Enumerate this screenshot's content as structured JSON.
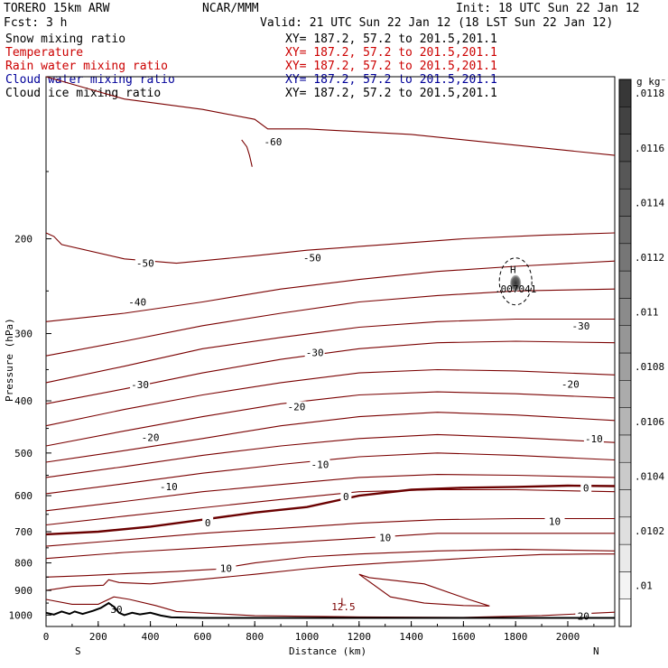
{
  "header": {
    "model": "TORERO  15km ARW",
    "center": "NCAR/MMM",
    "init": "Init: 18 UTC Sun 22 Jan 12",
    "fcst": "Fcst:     3 h",
    "valid": "Valid: 21 UTC Sun 22 Jan 12 (18 LST Sun 22 Jan 12)"
  },
  "fields": [
    {
      "label": "Snow mixing ratio",
      "xy": "XY= 187.2, 57.2 to 201.5,201.1",
      "color": "#000000"
    },
    {
      "label": "Temperature",
      "xy": "XY= 187.2, 57.2 to 201.5,201.1",
      "color": "#cc0000"
    },
    {
      "label": "Rain water mixing ratio",
      "xy": "XY= 187.2, 57.2 to 201.5,201.1",
      "color": "#cc0000"
    },
    {
      "label": "Cloud water mixing ratio",
      "xy": "XY= 187.2, 57.2 to 201.5,201.1",
      "color": "#000099"
    },
    {
      "label": "Cloud ice mixing ratio",
      "xy": "XY= 187.2, 57.2 to 201.5,201.1",
      "color": "#000000"
    }
  ],
  "colors": {
    "temp": "#7a0000",
    "zero": "#6a0000",
    "axis": "#000000"
  },
  "chart_data": {
    "type": "line",
    "xlabel": "Distance (km)",
    "ylabel": "Pressure (hPa)",
    "xlim": [
      0,
      2180
    ],
    "ylim": [
      1050,
      100
    ],
    "xticks": [
      0,
      200,
      400,
      600,
      800,
      1000,
      1200,
      1400,
      1600,
      1800,
      2000
    ],
    "yticks": [
      200,
      300,
      400,
      500,
      600,
      700,
      800,
      900,
      1000
    ],
    "y_scale": "log",
    "left_end": "S",
    "right_end": "N",
    "colorbar": {
      "unit": "g kg⁻¹",
      "ticks": [
        ".01",
        ".0102",
        ".0104",
        ".0106",
        ".0108",
        ".011",
        ".0112",
        ".0114",
        ".0116",
        ".0118"
      ]
    },
    "annotations": [
      {
        "text": "H",
        "x": 1790,
        "p": 228
      },
      {
        "text": ".007041",
        "x": 1800,
        "p": 248
      },
      {
        "text": "L",
        "x": 1140,
        "p": 945
      },
      {
        "text": "12.5",
        "x": 1140,
        "p": 965
      }
    ],
    "isotherms": [
      {
        "label": "-60",
        "label_at": [
          870,
          132
        ],
        "points": [
          [
            0,
            100
          ],
          [
            300,
            110
          ],
          [
            600,
            115
          ],
          [
            800,
            120
          ],
          [
            850,
            125
          ],
          [
            1000,
            125
          ],
          [
            1400,
            128
          ],
          [
            1800,
            134
          ],
          [
            2180,
            140
          ]
        ],
        "wiggle": [
          [
            750,
            131
          ],
          [
            770,
            135
          ],
          [
            780,
            140
          ],
          [
            790,
            147
          ]
        ]
      },
      {
        "label": "-50",
        "label_at": [
          380,
          222
        ],
        "points": [
          [
            0,
            195
          ],
          [
            30,
            198
          ],
          [
            60,
            205
          ],
          [
            300,
            218
          ],
          [
            500,
            222
          ],
          [
            800,
            215
          ],
          [
            1000,
            210
          ],
          [
            1300,
            205
          ],
          [
            1600,
            200
          ],
          [
            1900,
            197
          ],
          [
            2180,
            195
          ]
        ]
      },
      {
        "label": "-50",
        "label_at": [
          1020,
          217
        ],
        "points": [
          [
            0,
            285
          ],
          [
            300,
            275
          ],
          [
            600,
            262
          ],
          [
            900,
            248
          ],
          [
            1200,
            238
          ],
          [
            1500,
            230
          ],
          [
            1800,
            225
          ],
          [
            2180,
            220
          ]
        ]
      },
      {
        "label": "-40",
        "label_at": [
          350,
          262
        ],
        "points": [
          [
            0,
            330
          ],
          [
            300,
            310
          ],
          [
            600,
            290
          ],
          [
            900,
            275
          ],
          [
            1200,
            262
          ],
          [
            1500,
            255
          ],
          [
            1800,
            250
          ],
          [
            2180,
            248
          ]
        ]
      },
      {
        "label": "-30",
        "label_at": [
          2050,
          290
        ],
        "points": [
          [
            0,
            370
          ],
          [
            300,
            345
          ],
          [
            600,
            320
          ],
          [
            900,
            305
          ],
          [
            1200,
            292
          ],
          [
            1500,
            285
          ],
          [
            1800,
            282
          ],
          [
            2180,
            282
          ]
        ]
      },
      {
        "label": "-30",
        "label_at": [
          1030,
          325
        ],
        "points": [
          [
            0,
            405
          ],
          [
            300,
            380
          ],
          [
            600,
            355
          ],
          [
            900,
            335
          ],
          [
            1200,
            320
          ],
          [
            1500,
            312
          ],
          [
            1800,
            310
          ],
          [
            2180,
            312
          ]
        ]
      },
      {
        "label": "-30",
        "label_at": [
          360,
          373
        ],
        "points": [
          [
            0,
            445
          ],
          [
            300,
            415
          ],
          [
            600,
            390
          ],
          [
            900,
            370
          ],
          [
            1200,
            355
          ],
          [
            1500,
            350
          ],
          [
            1800,
            352
          ],
          [
            2180,
            358
          ]
        ]
      },
      {
        "label": "-20",
        "label_at": [
          2010,
          372
        ],
        "points": [
          [
            0,
            485
          ],
          [
            300,
            455
          ],
          [
            600,
            428
          ],
          [
            900,
            405
          ],
          [
            1200,
            390
          ],
          [
            1500,
            385
          ],
          [
            1800,
            388
          ],
          [
            2180,
            395
          ]
        ]
      },
      {
        "label": "-20",
        "label_at": [
          960,
          410
        ],
        "points": [
          [
            0,
            520
          ],
          [
            300,
            495
          ],
          [
            600,
            470
          ],
          [
            900,
            445
          ],
          [
            1200,
            428
          ],
          [
            1500,
            420
          ],
          [
            1800,
            425
          ],
          [
            2180,
            435
          ]
        ]
      },
      {
        "label": "-20",
        "label_at": [
          400,
          468
        ],
        "points": [
          [
            0,
            555
          ],
          [
            300,
            530
          ],
          [
            600,
            505
          ],
          [
            900,
            485
          ],
          [
            1200,
            470
          ],
          [
            1500,
            462
          ],
          [
            1800,
            468
          ],
          [
            2180,
            478
          ]
        ]
      },
      {
        "label": "-10",
        "label_at": [
          2100,
          470
        ],
        "points": [
          [
            0,
            595
          ],
          [
            300,
            570
          ],
          [
            600,
            545
          ],
          [
            900,
            525
          ],
          [
            1200,
            508
          ],
          [
            1500,
            500
          ],
          [
            1800,
            505
          ],
          [
            2180,
            515
          ]
        ]
      },
      {
        "label": "-10",
        "label_at": [
          1050,
          525
        ],
        "points": [
          [
            0,
            640
          ],
          [
            300,
            615
          ],
          [
            600,
            590
          ],
          [
            900,
            572
          ],
          [
            1200,
            555
          ],
          [
            1500,
            548
          ],
          [
            1800,
            550
          ],
          [
            2180,
            555
          ]
        ]
      },
      {
        "label": "-10",
        "label_at": [
          470,
          577
        ],
        "points": [
          [
            0,
            680
          ],
          [
            300,
            655
          ],
          [
            600,
            632
          ],
          [
            900,
            610
          ],
          [
            1200,
            590
          ],
          [
            1500,
            585
          ],
          [
            1800,
            585
          ],
          [
            2180,
            590
          ]
        ]
      },
      {
        "label": "10",
        "label_at": [
          1950,
          670
        ],
        "points": [
          [
            0,
            745
          ],
          [
            300,
            725
          ],
          [
            600,
            705
          ],
          [
            900,
            690
          ],
          [
            1200,
            675
          ],
          [
            1500,
            665
          ],
          [
            1800,
            662
          ],
          [
            2180,
            662
          ]
        ]
      },
      {
        "label": "10",
        "label_at": [
          1300,
          718
        ],
        "points": [
          [
            0,
            785
          ],
          [
            300,
            765
          ],
          [
            600,
            750
          ],
          [
            900,
            735
          ],
          [
            1200,
            720
          ],
          [
            1500,
            705
          ],
          [
            1800,
            705
          ],
          [
            2180,
            705
          ]
        ]
      },
      {
        "label": "10",
        "label_at": [
          690,
          818
        ],
        "points": [
          [
            0,
            850
          ],
          [
            150,
            845
          ],
          [
            300,
            838
          ],
          [
            500,
            830
          ],
          [
            650,
            822
          ],
          [
            800,
            800
          ],
          [
            1000,
            780
          ],
          [
            1200,
            770
          ],
          [
            1500,
            760
          ],
          [
            1800,
            755
          ],
          [
            2180,
            760
          ]
        ]
      }
    ],
    "zero_isotherm": {
      "label": "0",
      "label_at": [
        620,
        673
      ],
      "label2": "0",
      "label2_at": [
        1150,
        602
      ],
      "label3": "0",
      "label3_at": [
        2070,
        580
      ],
      "points": [
        [
          0,
          708
        ],
        [
          200,
          700
        ],
        [
          400,
          685
        ],
        [
          600,
          665
        ],
        [
          800,
          645
        ],
        [
          1000,
          630
        ],
        [
          1200,
          600
        ],
        [
          1400,
          585
        ],
        [
          1600,
          580
        ],
        [
          1800,
          578
        ],
        [
          2000,
          575
        ],
        [
          2180,
          576
        ]
      ]
    },
    "tongue": {
      "points": [
        [
          0,
          900
        ],
        [
          100,
          885
        ],
        [
          220,
          880
        ],
        [
          240,
          860
        ],
        [
          280,
          870
        ],
        [
          400,
          875
        ],
        [
          600,
          858
        ],
        [
          800,
          840
        ],
        [
          1000,
          820
        ],
        [
          1100,
          812
        ],
        [
          1300,
          800
        ],
        [
          1500,
          790
        ],
        [
          1700,
          780
        ],
        [
          1900,
          772
        ],
        [
          2100,
          770
        ],
        [
          2180,
          770
        ]
      ],
      "inner": [
        [
          1200,
          840
        ],
        [
          1320,
          925
        ],
        [
          1450,
          950
        ],
        [
          1600,
          960
        ],
        [
          1700,
          962
        ],
        [
          1620,
          935
        ],
        [
          1450,
          875
        ],
        [
          1240,
          852
        ],
        [
          1200,
          840
        ]
      ]
    },
    "lower_isotherm": {
      "label": "20",
      "label_at": [
        2060,
        1005
      ],
      "points": [
        [
          0,
          935
        ],
        [
          100,
          955
        ],
        [
          200,
          955
        ],
        [
          260,
          925
        ],
        [
          320,
          935
        ],
        [
          420,
          960
        ],
        [
          500,
          985
        ],
        [
          800,
          1003
        ],
        [
          1200,
          1008
        ],
        [
          1600,
          1010
        ],
        [
          1900,
          1002
        ],
        [
          2180,
          988
        ]
      ]
    },
    "label_30": {
      "text": "30",
      "x": 270,
      "p": 975
    },
    "terrain": {
      "points": [
        [
          0,
          990
        ],
        [
          30,
          998
        ],
        [
          60,
          985
        ],
        [
          90,
          995
        ],
        [
          110,
          985
        ],
        [
          140,
          995
        ],
        [
          180,
          982
        ],
        [
          210,
          970
        ],
        [
          240,
          950
        ],
        [
          260,
          965
        ],
        [
          280,
          990
        ],
        [
          300,
          1000
        ],
        [
          330,
          990
        ],
        [
          360,
          997
        ],
        [
          400,
          990
        ],
        [
          440,
          1002
        ],
        [
          480,
          1010
        ],
        [
          600,
          1012
        ],
        [
          1000,
          1012
        ],
        [
          1400,
          1012
        ],
        [
          1800,
          1012
        ],
        [
          2180,
          1012
        ]
      ]
    }
  }
}
